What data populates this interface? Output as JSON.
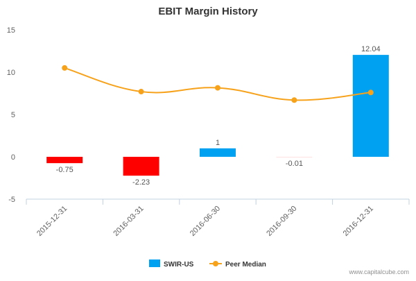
{
  "chart_data": {
    "type": "bar",
    "title": "EBIT Margin History",
    "xlabel": "",
    "ylabel": "",
    "categories": [
      "2015-12-31",
      "2016-03-31",
      "2016-06-30",
      "2016-09-30",
      "2016-12-31"
    ],
    "ylim": [
      -5,
      15
    ],
    "yticks": [
      -5,
      0,
      5,
      10,
      15
    ],
    "grid": false,
    "legend_position": "bottom-center",
    "series": [
      {
        "name": "SWIR-US",
        "kind": "bar",
        "values": [
          -0.75,
          -2.23,
          1,
          -0.01,
          12.04
        ],
        "labels": [
          "-0.75",
          "-2.23",
          "1",
          "-0.01",
          "12.04"
        ],
        "positive_color": "#00a1f1",
        "negative_color": "#ff0000"
      },
      {
        "name": "Peer Median",
        "kind": "line",
        "values": [
          10.5,
          7.7,
          8.15,
          6.7,
          7.6
        ],
        "color": "#f7a21b"
      }
    ]
  },
  "watermark": "www.capitalcube.com"
}
